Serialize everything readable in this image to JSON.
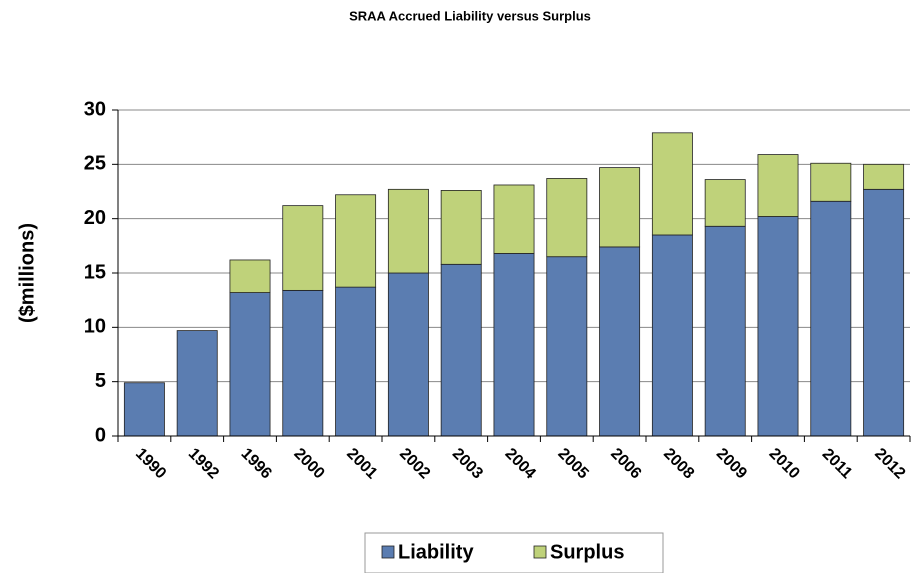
{
  "chart_data": {
    "type": "stacked_bar",
    "title": "SRAA Accrued Liability versus Surplus",
    "y_label": "($millions)",
    "categories": [
      "1990",
      "1992",
      "1996",
      "2000",
      "2001",
      "2002",
      "2003",
      "2004",
      "2005",
      "2006",
      "2008",
      "2009",
      "2010",
      "2011",
      "2012"
    ],
    "series": [
      {
        "name": "Liability",
        "color": "#5b7db1",
        "values": [
          4.9,
          9.7,
          13.2,
          13.4,
          13.7,
          15.0,
          15.8,
          16.8,
          16.5,
          17.4,
          18.5,
          19.3,
          20.2,
          21.6,
          22.7
        ]
      },
      {
        "name": "Surplus",
        "color": "#bfd27a",
        "values": [
          0,
          0,
          3.0,
          7.8,
          8.5,
          7.7,
          6.8,
          6.3,
          7.2,
          7.3,
          9.4,
          4.3,
          5.7,
          3.5,
          2.3
        ]
      }
    ],
    "ylim": [
      0,
      30
    ],
    "yticks": [
      0,
      5,
      10,
      15,
      20,
      25,
      30
    ],
    "grid": true,
    "legend": "bottom"
  }
}
